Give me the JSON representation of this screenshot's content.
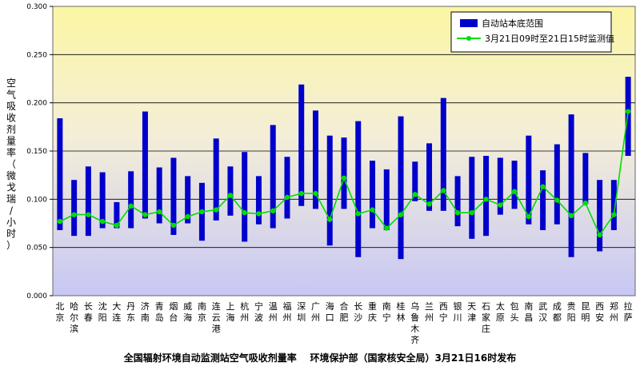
{
  "chart_data": {
    "type": "bar",
    "ylabel": "空气吸收剂量率（微戈瑞/小时）",
    "ylim": [
      0,
      0.3
    ],
    "yticks": [
      "0.000",
      "0.050",
      "0.100",
      "0.150",
      "0.200",
      "0.250",
      "0.300"
    ],
    "grid": true,
    "legend_position": "top-right",
    "caption": "全国辐射环境自动监测站空气吸收剂量率    环境保护部（国家核安全局）3月21日16时发布",
    "categories": [
      "北京",
      "哈尔滨",
      "长春",
      "沈阳",
      "大连",
      "丹东",
      "济南",
      "青岛",
      "烟台",
      "威海",
      "南京",
      "连云港",
      "上海",
      "杭州",
      "宁波",
      "温州",
      "福州",
      "深圳",
      "广州",
      "海口",
      "合肥",
      "长沙",
      "重庆",
      "南宁",
      "桂林",
      "乌鲁木齐",
      "兰州",
      "西宁",
      "银川",
      "天津",
      "石家庄",
      "太原",
      "包头",
      "南昌",
      "武汉",
      "成都",
      "贵阳",
      "昆明",
      "西安",
      "郑州",
      "拉萨"
    ],
    "series": [
      {
        "name": "自动站本底范围",
        "kind": "range-bar",
        "color": "#0000cc",
        "low": [
          0.068,
          0.062,
          0.062,
          0.07,
          0.07,
          0.07,
          0.08,
          0.075,
          0.063,
          0.075,
          0.057,
          0.078,
          0.083,
          0.056,
          0.074,
          0.07,
          0.08,
          0.093,
          0.09,
          0.052,
          0.09,
          0.04,
          0.07,
          0.068,
          0.038,
          0.098,
          0.088,
          0.088,
          0.072,
          0.059,
          0.062,
          0.084,
          0.09,
          0.074,
          0.068,
          0.074,
          0.04,
          0.095,
          0.046,
          0.068,
          0.145
        ],
        "high": [
          0.184,
          0.12,
          0.134,
          0.128,
          0.097,
          0.129,
          0.191,
          0.133,
          0.143,
          0.124,
          0.117,
          0.163,
          0.134,
          0.149,
          0.124,
          0.177,
          0.144,
          0.219,
          0.192,
          0.166,
          0.164,
          0.181,
          0.14,
          0.131,
          0.186,
          0.139,
          0.158,
          0.205,
          0.124,
          0.144,
          0.145,
          0.143,
          0.14,
          0.166,
          0.13,
          0.157,
          0.188,
          0.148,
          0.12,
          0.12,
          0.227
        ]
      },
      {
        "name": "3月21日09时至21日15时监测值",
        "kind": "line",
        "color": "#00dd00",
        "values": [
          0.077,
          0.084,
          0.084,
          0.077,
          0.073,
          0.093,
          0.084,
          0.087,
          0.073,
          0.082,
          0.087,
          0.089,
          0.104,
          0.086,
          0.085,
          0.088,
          0.102,
          0.106,
          0.106,
          0.079,
          0.122,
          0.085,
          0.089,
          0.07,
          0.084,
          0.105,
          0.095,
          0.109,
          0.086,
          0.086,
          0.1,
          0.094,
          0.108,
          0.082,
          0.113,
          0.099,
          0.083,
          0.096,
          0.063,
          0.084,
          0.191
        ]
      }
    ]
  }
}
